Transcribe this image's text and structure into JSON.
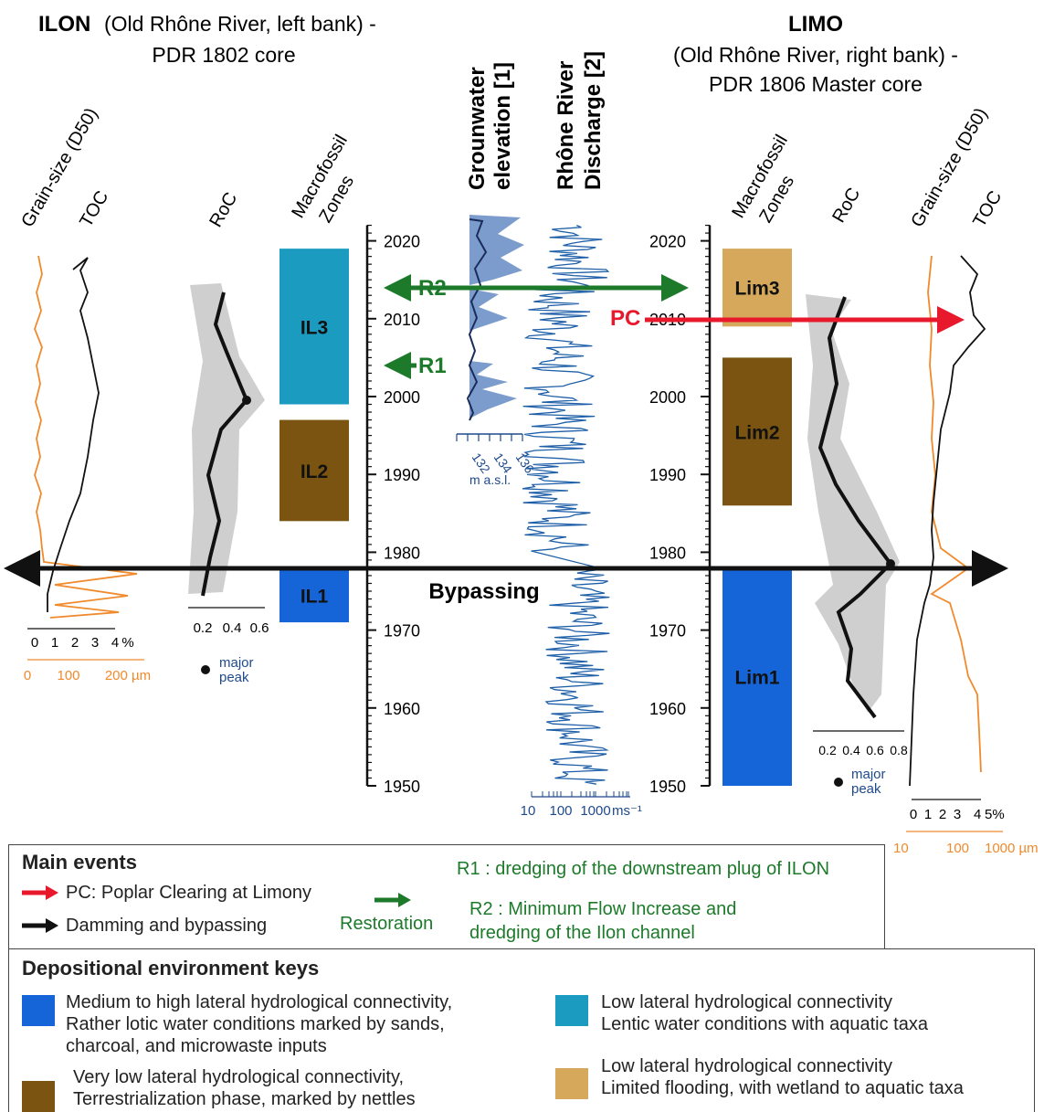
{
  "left_core": {
    "site": "ILON",
    "site_desc": "(Old Rhône River, left bank) -",
    "core": "PDR 1802 core",
    "col_grain": "Grain-size (D50)",
    "col_toc": "TOC",
    "col_roc": "RoC",
    "col_macro_1": "Macrofossil",
    "col_macro_2": "Zones",
    "zones": [
      {
        "label": "IL3",
        "key": "lentic",
        "from": 1999,
        "to": 2019
      },
      {
        "label": "IL2",
        "key": "terrestrial",
        "from": 1984,
        "to": 1997
      },
      {
        "label": "IL1",
        "key": "lotic",
        "from": 1971,
        "to": 1978
      }
    ],
    "toc_ticks": [
      "0",
      "1",
      "2",
      "3",
      "4",
      "%"
    ],
    "grain_ticks": [
      "0",
      "100",
      "200 µm"
    ],
    "roc_ticks": [
      "0.2",
      "0.4",
      "0.6"
    ],
    "major_peak": "major",
    "major_peak_2": "peak"
  },
  "right_core": {
    "site": "LIMO",
    "site_desc": "(Old Rhône River, right bank) -",
    "core": "PDR 1806 Master core",
    "col_grain": "Grain-size (D50)",
    "col_toc": "TOC",
    "col_roc": "RoC",
    "col_macro_1": "Macrofossil",
    "col_macro_2": "Zones",
    "zones": [
      {
        "label": "Lim3",
        "key": "flooding",
        "from": 2009,
        "to": 2019
      },
      {
        "label": "Lim2",
        "key": "terrestrial",
        "from": 1986,
        "to": 2005
      },
      {
        "label": "Lim1",
        "key": "lotic",
        "from": 1950,
        "to": 1978
      }
    ],
    "toc_ticks": [
      "0",
      "1",
      "2",
      "3",
      "4",
      "5%"
    ],
    "grain_ticks": [
      "10",
      "100",
      "1000 µm"
    ],
    "roc_ticks": [
      "0.2",
      "0.4",
      "0.6",
      "0.8"
    ],
    "major_peak": "major",
    "major_peak_2": "peak"
  },
  "center": {
    "gw_title_1": "Grounwater",
    "gw_title_2": "elevation [1]",
    "discharge_title_1": "Rhône River",
    "discharge_title_2": "Discharge [2]",
    "year_ticks": [
      "2020",
      "2010",
      "2000",
      "1990",
      "1980",
      "1970",
      "1960",
      "1950"
    ],
    "gw_ticks": [
      "132",
      "134",
      "136"
    ],
    "gw_unit": "m a.s.l.",
    "discharge_ticks": [
      "10",
      "100",
      "1000"
    ],
    "discharge_unit": "ms⁻¹"
  },
  "events_on_chart": {
    "r1": "R1",
    "r2": "R2",
    "pc": "PC",
    "bypassing": "Bypassing"
  },
  "legend_events": {
    "title": "Main events",
    "pc": "PC: Poplar Clearing at Limony",
    "damming": "Damming and bypassing",
    "restoration": "Restoration",
    "r1": "R1 : dredging of the downstream plug of ILON",
    "r2_line1": "R2 : Minimum Flow Increase and",
    "r2_line2": "dredging of the Ilon channel"
  },
  "legend_keys": {
    "title": "Depositional environment keys",
    "lotic": [
      "Medium to high lateral hydrological connectivity,",
      "Rather lotic water conditions marked by sands,",
      "charcoal, and microwaste inputs"
    ],
    "terrestrial": [
      "Very low lateral hydrological connectivity,",
      "Terrestrialization phase, marked by nettles"
    ],
    "lentic": [
      "Low lateral hydrological connectivity",
      "Lentic water conditions with aquatic taxa"
    ],
    "flooding": [
      "Low lateral hydrological connectivity",
      "Limited flooding, with wetland to aquatic taxa"
    ]
  },
  "colors": {
    "lotic": "#1565d8",
    "terrestrial": "#7a5410",
    "lentic": "#1a9bbf",
    "flooding": "#d6a85c",
    "grain": "#f08a2c",
    "discharge": "#1e5fa8",
    "gw_fill": "#7b9ccc",
    "restoration": "#1c7a2a",
    "pc": "#e8192c",
    "axis_blue": "#1e4a8c"
  }
}
